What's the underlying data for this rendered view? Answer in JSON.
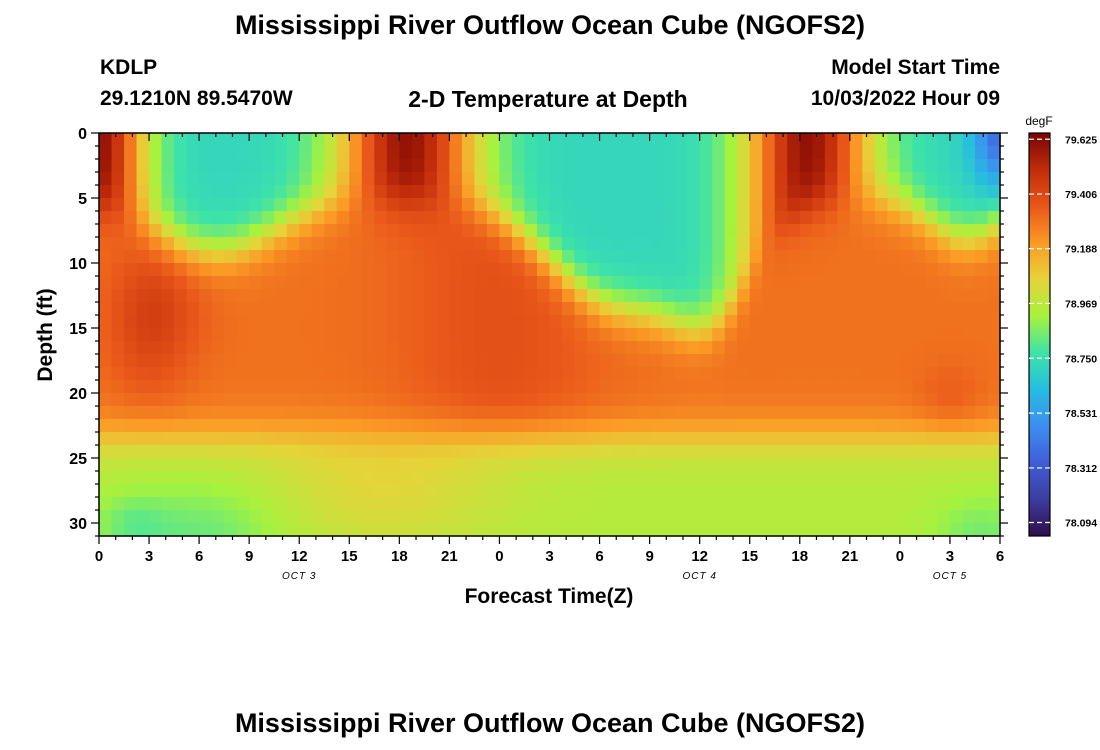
{
  "page": {
    "title": "Mississippi River Outflow Ocean Cube (NGOFS2)",
    "bottom_title": "Mississippi River Outflow Ocean Cube (NGOFS2)",
    "station": "KDLP",
    "coords": "29.1210N  89.5470W",
    "subtitle": "2-D Temperature at Depth",
    "model_label": "Model Start Time",
    "model_time": "10/03/2022 Hour 09"
  },
  "chart_data": {
    "type": "heatmap",
    "title": "2-D Temperature at Depth",
    "xlabel": "Forecast Time(Z)",
    "ylabel": "Depth (ft)",
    "x_ticks": [
      "0",
      "3",
      "6",
      "9",
      "12",
      "15",
      "18",
      "21",
      "0",
      "3",
      "6",
      "9",
      "12",
      "15",
      "18",
      "21",
      "0",
      "3",
      "6"
    ],
    "x_range_hours": [
      0,
      54
    ],
    "y_ticks": [
      "0",
      "5",
      "10",
      "15",
      "20",
      "25",
      "30"
    ],
    "y_range_ft": [
      0,
      31
    ],
    "y_inverted": true,
    "date_labels": [
      {
        "label": "OCT 3",
        "hour": 12
      },
      {
        "label": "OCT 4",
        "hour": 36
      },
      {
        "label": "OCT 5",
        "hour": 51
      }
    ],
    "colorbar": {
      "unit": "degF",
      "ticks": [
        "79.625",
        "79.406",
        "79.188",
        "78.969",
        "78.750",
        "78.531",
        "78.312",
        "78.094"
      ],
      "range": [
        78.04,
        79.65
      ],
      "colors": [
        "#2f0c4c",
        "#3c3d9f",
        "#3f5fd6",
        "#3d8ef0",
        "#26bde0",
        "#3ee3a7",
        "#a6f23e",
        "#e6d33a",
        "#fb9a25",
        "#e9571a",
        "#c12c0a",
        "#7a0403"
      ]
    },
    "field_description_values_degF": {
      "surface_cold_bands": 78.72,
      "warm_pulses_near_hour_18_and_42": 79.6,
      "warm_layer_depth_20ft": 79.3,
      "deep_water_near_30ft": 78.95
    }
  }
}
